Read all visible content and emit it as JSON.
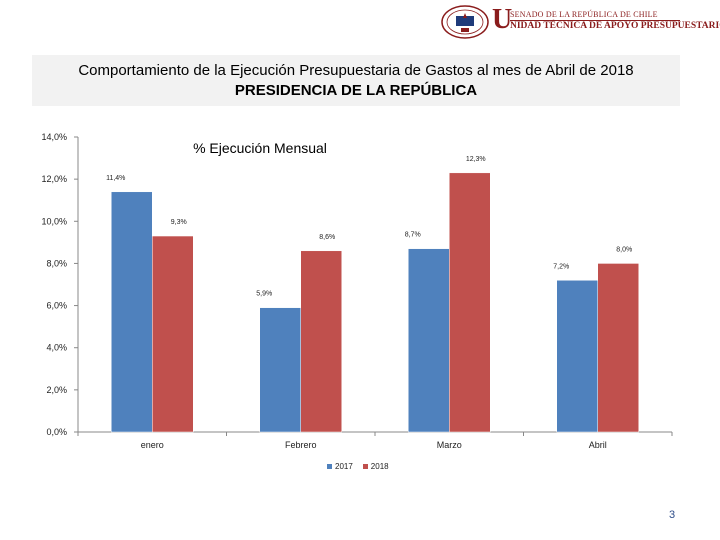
{
  "header": {
    "org_line1": "SENADO DE LA REPÚBLICA DE CHILE",
    "org_big_letter": "U",
    "org_line2": "NIDAD TÉCNICA DE APOYO PRESUPUESTARIO",
    "logo_icon": "senate-seal-icon"
  },
  "title": {
    "line1": "Comportamiento de la Ejecución Presupuestaria de Gastos al mes de Abril de 2018",
    "line2": "PRESIDENCIA DE LA REPÚBLICA"
  },
  "page_number": "3",
  "colors": {
    "series_2017": "#4f81bd",
    "series_2018": "#c0504d",
    "title_box": "#f2f2f2",
    "header_red": "#8a1c1c"
  },
  "chart_data": {
    "type": "bar",
    "title": "% Ejecución Mensual",
    "categories": [
      "enero",
      "Febrero",
      "Marzo",
      "Abril"
    ],
    "series": [
      {
        "name": "2017",
        "values": [
          11.4,
          5.9,
          8.7,
          7.2
        ],
        "labels": [
          "11,4%",
          "5,9%",
          "8,7%",
          "7,2%"
        ]
      },
      {
        "name": "2018",
        "values": [
          9.3,
          8.6,
          12.3,
          8.0
        ],
        "labels": [
          "9,3%",
          "8,6%",
          "12,3%",
          "8,0%"
        ]
      }
    ],
    "ylim": [
      0,
      14
    ],
    "yticks": [
      0,
      2,
      4,
      6,
      8,
      10,
      12,
      14
    ],
    "ytick_labels": [
      "0,0%",
      "2,0%",
      "4,0%",
      "6,0%",
      "8,0%",
      "10,0%",
      "12,0%",
      "14,0%"
    ],
    "xlabel": "",
    "ylabel": "",
    "legend_position": "bottom"
  }
}
